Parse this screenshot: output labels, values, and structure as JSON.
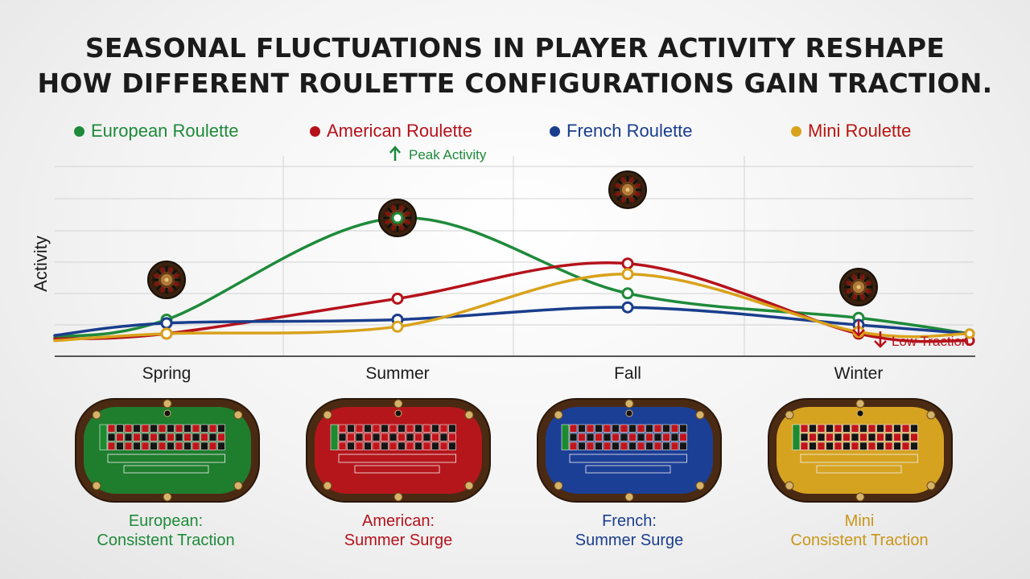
{
  "title": {
    "line1": "SEASONAL FLUCTUATIONS IN PLAYER ACTIVITY RESHAPE",
    "line2": "HOW DIFFERENT ROULETTE CONFIGURATIONS GAIN TRACTION."
  },
  "colors": {
    "european": "#1e8a3a",
    "american": "#b5121b",
    "french": "#1a3e8c",
    "mini": "#d9a21b"
  },
  "chart_data": {
    "type": "line",
    "title": "SEASONAL FLUCTUATIONS IN PLAYER ACTIVITY RESHAPE HOW DIFFERENT ROULETTE CONFIGURATIONS GAIN TRACTION.",
    "xlabel": "",
    "ylabel": "Activity",
    "categories": [
      "Spring",
      "Summer",
      "Fall",
      "Winter"
    ],
    "ylim": [
      0,
      10
    ],
    "grid": true,
    "legend_position": "top",
    "series": [
      {
        "name": "European Roulette",
        "color": "#1e8a3a",
        "start": 0.4,
        "values": [
          1.4,
          7.2,
          2.9,
          1.5
        ],
        "end": 0.6
      },
      {
        "name": "American Roulette",
        "color": "#b5121b",
        "start": 0.3,
        "values": [
          0.6,
          2.6,
          4.6,
          0.6
        ],
        "end": 0.2
      },
      {
        "name": "French Roulette",
        "color": "#1a3e8c",
        "start": 0.5,
        "values": [
          1.2,
          1.4,
          2.1,
          1.1
        ],
        "end": 0.6
      },
      {
        "name": "Mini Roulette",
        "color": "#d9a21b",
        "start": 0.2,
        "values": [
          0.6,
          1.0,
          4.0,
          0.7
        ],
        "end": 0.6
      }
    ],
    "annotations": [
      {
        "text": "Peak Activity",
        "series": "European Roulette",
        "category": "Summer",
        "arrow": "up"
      },
      {
        "text": "Low Traction",
        "series": "American Roulette",
        "category": "Winter",
        "arrow": "down"
      }
    ]
  },
  "tables": [
    {
      "name": "European",
      "felt": "#1f7d2e",
      "caption_line1": "European:",
      "caption_line2": "Consistent Traction",
      "caption_color": "#1e8a3a"
    },
    {
      "name": "American",
      "felt": "#b5161c",
      "caption_line1": "American:",
      "caption_line2": "Summer Surge",
      "caption_color": "#b5121b"
    },
    {
      "name": "French",
      "felt": "#1c3f96",
      "caption_line1": "French:",
      "caption_line2": "Summer Surge",
      "caption_color": "#1a3e8c"
    },
    {
      "name": "Mini",
      "felt": "#d6a321",
      "caption_line1": "Mini",
      "caption_line2": "Consistent Traction",
      "caption_color": "#c9961a"
    }
  ]
}
